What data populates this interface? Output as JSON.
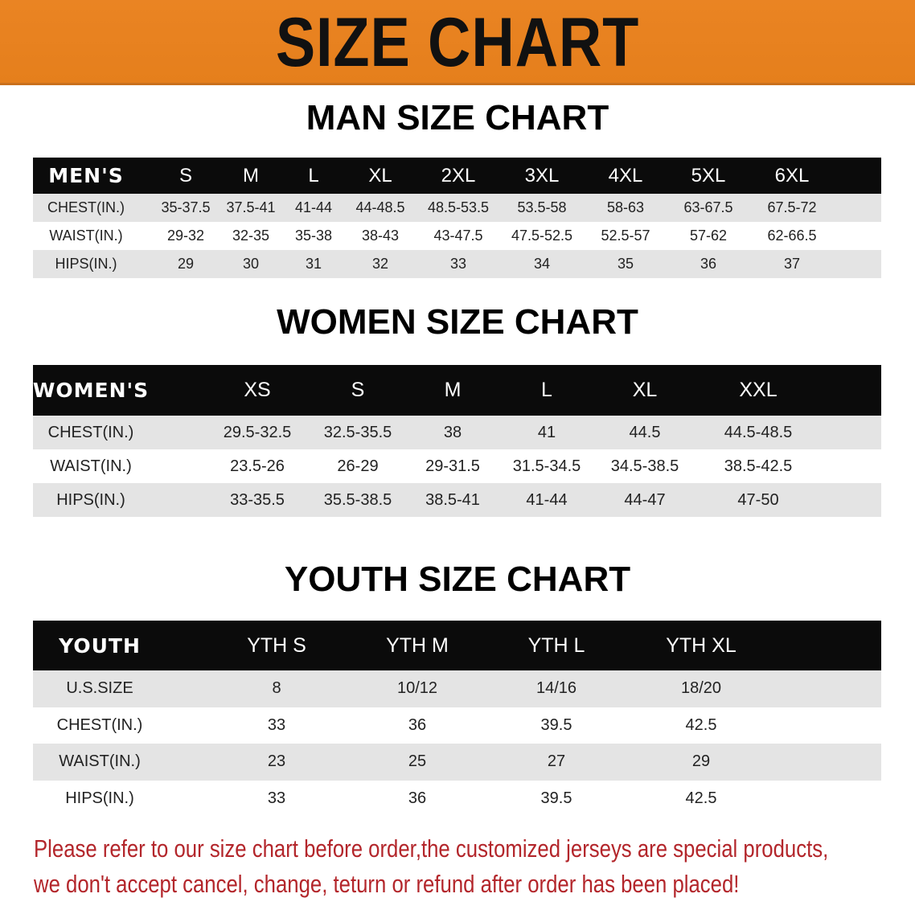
{
  "banner": {
    "title": "SIZE CHART",
    "color": "#e8821e"
  },
  "men": {
    "title": "MAN SIZE CHART",
    "header": [
      "MEN'S",
      "S",
      "M",
      "L",
      "XL",
      "2XL",
      "3XL",
      "4XL",
      "5XL",
      "6XL"
    ],
    "rows": [
      [
        "CHEST(IN.)",
        "35-37.5",
        "37.5-41",
        "41-44",
        "44-48.5",
        "48.5-53.5",
        "53.5-58",
        "58-63",
        "63-67.5",
        "67.5-72"
      ],
      [
        "WAIST(IN.)",
        "29-32",
        "32-35",
        "35-38",
        "38-43",
        "43-47.5",
        "47.5-52.5",
        "52.5-57",
        "57-62",
        "62-66.5"
      ],
      [
        "HIPS(IN.)",
        "29",
        "30",
        "31",
        "32",
        "33",
        "34",
        "35",
        "36",
        "37"
      ]
    ]
  },
  "women": {
    "title": "WOMEN SIZE CHART",
    "header": [
      "WOMEN'S",
      "XS",
      "S",
      "M",
      "L",
      "XL",
      "XXL"
    ],
    "rows": [
      [
        "CHEST(IN.)",
        "29.5-32.5",
        "32.5-35.5",
        "38",
        "41",
        "44.5",
        "44.5-48.5"
      ],
      [
        "WAIST(IN.)",
        "23.5-26",
        "26-29",
        "29-31.5",
        "31.5-34.5",
        "34.5-38.5",
        "38.5-42.5"
      ],
      [
        "HIPS(IN.)",
        "33-35.5",
        "35.5-38.5",
        "38.5-41",
        "41-44",
        "44-47",
        "47-50"
      ]
    ]
  },
  "youth": {
    "title": "YOUTH SIZE CHART",
    "header": [
      "YOUTH",
      "YTH S",
      "YTH M",
      "YTH L",
      "YTH XL"
    ],
    "rows": [
      [
        "U.S.SIZE",
        "8",
        "10/12",
        "14/16",
        "18/20"
      ],
      [
        "CHEST(IN.)",
        "33",
        "36",
        "39.5",
        "42.5"
      ],
      [
        "WAIST(IN.)",
        "23",
        "25",
        "27",
        "29"
      ],
      [
        "HIPS(IN.)",
        "33",
        "36",
        "39.5",
        "42.5"
      ]
    ]
  },
  "notice": {
    "line1": "Please refer to our size chart before order,the customized jerseys are special products,",
    "line2": "we don't accept cancel, change, teturn or refund after order has been placed!",
    "color": "#b3262b"
  }
}
